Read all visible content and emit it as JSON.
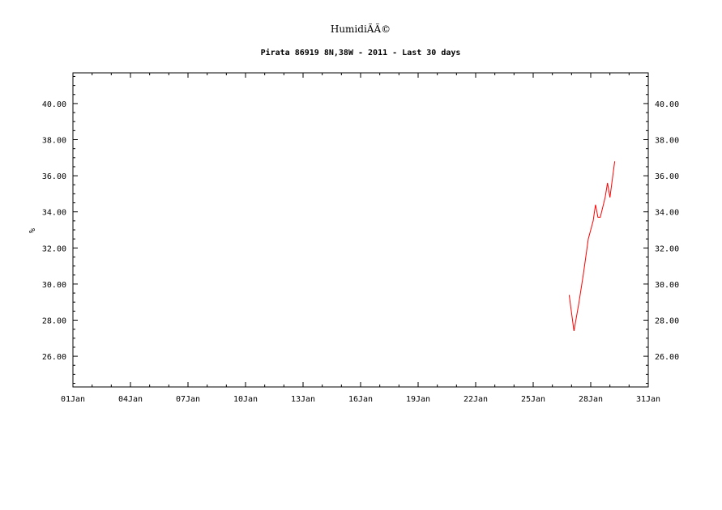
{
  "chart_data": {
    "type": "line",
    "title": "HumidiÃÃ©",
    "subtitle": "Pirata 86919 8N,38W - 2011 - Last 30 days",
    "ylabel": "%",
    "xlabel": "",
    "xlim": [
      "2011-01-01",
      "2011-01-31"
    ],
    "ylim": [
      24.3,
      41.7
    ],
    "x_ticks": [
      "01Jan",
      "04Jan",
      "07Jan",
      "10Jan",
      "13Jan",
      "16Jan",
      "19Jan",
      "22Jan",
      "25Jan",
      "28Jan",
      "31Jan"
    ],
    "y_ticks": [
      "26.00",
      "28.00",
      "30.00",
      "32.00",
      "34.00",
      "36.00",
      "38.00",
      "40.00"
    ],
    "grid": false,
    "series": [
      {
        "color": "#ff0000",
        "points": [
          [
            "2011-01-26T21:00",
            29.4
          ],
          [
            "2011-01-27T03:00",
            27.4
          ],
          [
            "2011-01-27T09:00",
            28.9
          ],
          [
            "2011-01-27T15:00",
            30.6
          ],
          [
            "2011-01-27T21:00",
            32.5
          ],
          [
            "2011-01-28T03:00",
            33.5
          ],
          [
            "2011-01-28T06:00",
            34.4
          ],
          [
            "2011-01-28T09:00",
            33.7
          ],
          [
            "2011-01-28T12:00",
            33.7
          ],
          [
            "2011-01-28T18:00",
            34.8
          ],
          [
            "2011-01-28T21:00",
            35.6
          ],
          [
            "2011-01-29T00:00",
            34.8
          ],
          [
            "2011-01-29T06:00",
            36.8
          ]
        ]
      }
    ]
  }
}
